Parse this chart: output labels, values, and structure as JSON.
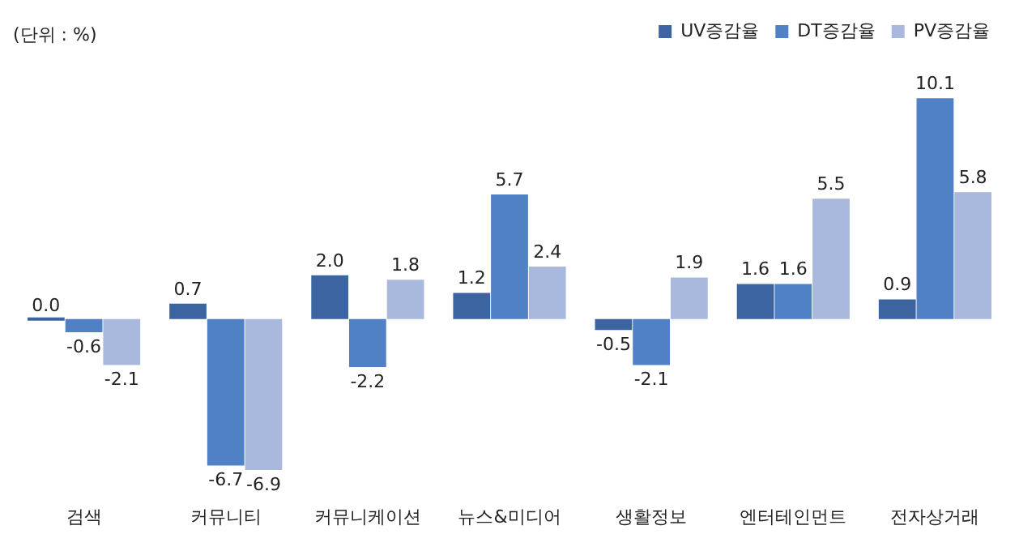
{
  "chart_data": {
    "type": "bar",
    "annotations": [
      "(단위 : %)"
    ],
    "categories": [
      "검색",
      "커뮤니티",
      "커뮤니케이션",
      "뉴스&미디어",
      "생활정보",
      "엔터테인먼트",
      "전자상거래"
    ],
    "series": [
      {
        "name": "UV증감율",
        "color": "#3b64a0",
        "values": [
          0.0,
          0.7,
          2.0,
          1.2,
          -0.5,
          1.6,
          0.9
        ],
        "value_labels": [
          "0.0",
          "0.7",
          "2.0",
          "1.2",
          "-0.5",
          "1.6",
          "0.9"
        ]
      },
      {
        "name": "DT증감율",
        "color": "#4f81c4",
        "values": [
          -0.6,
          -6.7,
          -2.2,
          5.7,
          -2.1,
          1.6,
          10.1
        ],
        "value_labels": [
          "-0.6",
          "-6.7",
          "-2.2",
          "5.7",
          "-2.1",
          "1.6",
          "10.1"
        ]
      },
      {
        "name": "PV증감율",
        "color": "#a9b9dd",
        "values": [
          -2.1,
          -6.9,
          1.8,
          2.4,
          1.9,
          5.5,
          5.8
        ],
        "value_labels": [
          "-2.1",
          "-6.9",
          "1.8",
          "2.4",
          "1.9",
          "5.5",
          "5.8"
        ]
      }
    ],
    "legend": "top right",
    "grid": false
  }
}
